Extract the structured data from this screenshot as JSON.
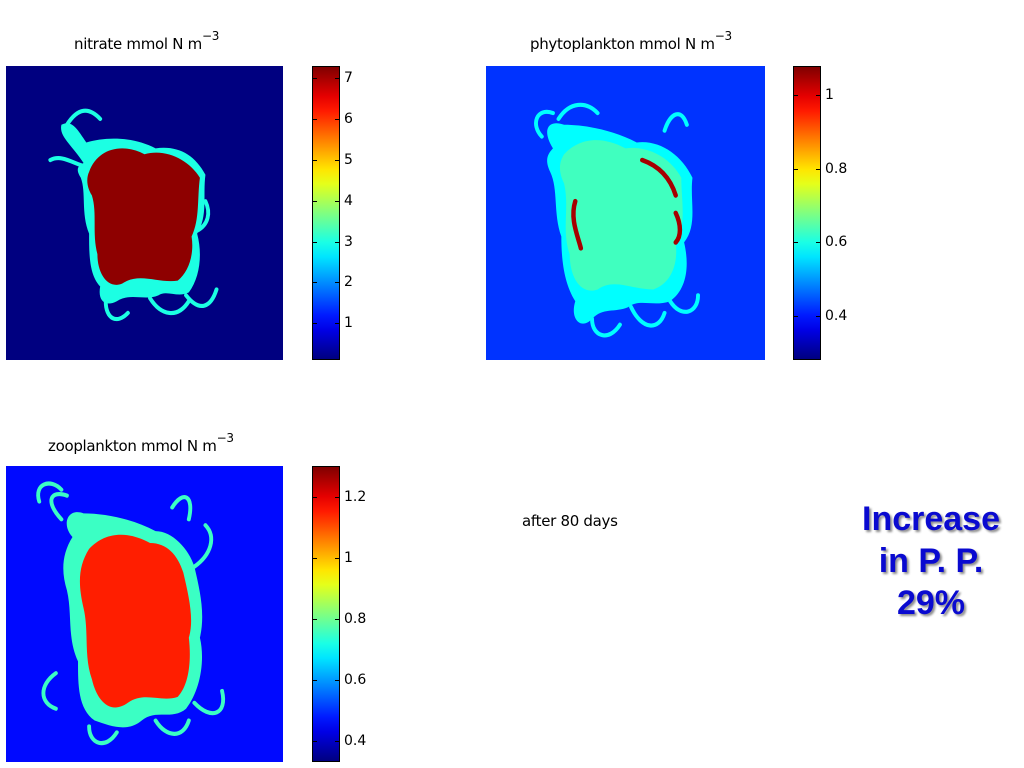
{
  "chart_data": [
    {
      "type": "heatmap",
      "title": "nitrate  mmol N m",
      "title_sup": "−3",
      "colormap": "jet",
      "colorbar_range": [
        0.1,
        7.3
      ],
      "colorbar_ticks": [
        "1",
        "2",
        "3",
        "4",
        "5",
        "6",
        "7"
      ],
      "colorbar_tick_values": [
        1,
        2,
        3,
        4,
        5,
        6,
        7
      ],
      "background_value": 0.1,
      "patch_value": 7.2,
      "edge_value": 3.0
    },
    {
      "type": "heatmap",
      "title": "phytoplankton  mmol N m",
      "title_sup": "−3",
      "colormap": "jet",
      "colorbar_range": [
        0.28,
        1.08
      ],
      "colorbar_ticks": [
        "0.4",
        "0.6",
        "0.8",
        "1"
      ],
      "colorbar_tick_values": [
        0.4,
        0.6,
        0.8,
        1.0
      ],
      "background_value": 0.42,
      "patch_value": 0.63,
      "edge_value": 0.58,
      "front_value": 1.05
    },
    {
      "type": "heatmap",
      "title": "zooplankton mmol N m",
      "title_sup": "−3",
      "colormap": "jet",
      "colorbar_range": [
        0.33,
        1.3
      ],
      "colorbar_ticks": [
        "0.4",
        "0.6",
        "0.8",
        "1",
        "1.2"
      ],
      "colorbar_tick_values": [
        0.4,
        0.6,
        0.8,
        1.0,
        1.2
      ],
      "background_value": 0.46,
      "patch_value": 1.15,
      "edge_value": 0.75
    }
  ],
  "note": "after 80 days",
  "callout": {
    "line1": "Increase",
    "line2": "in P. P.",
    "line3": "29%"
  }
}
